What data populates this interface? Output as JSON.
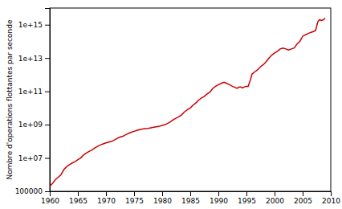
{
  "chart_data": {
    "type": "line",
    "ylabel": "Nombre d'operations flottantes par seconde",
    "log": "y",
    "grid": false,
    "color": "#cc0000",
    "xlim": [
      1960,
      2010
    ],
    "ylim": [
      100000,
      1e+16
    ],
    "xticks": [
      1960,
      1965,
      1970,
      1975,
      1980,
      1985,
      1990,
      1995,
      2000,
      2005,
      2010
    ],
    "yticks": [
      100000,
      {
        "value": 10000000.0,
        "label": "1e+07"
      },
      {
        "value": 1000000000.0,
        "label": "1e+09"
      },
      {
        "value": 100000000000.0,
        "label": "1e+11"
      },
      {
        "value": 10000000000000.0,
        "label": "1e+13"
      },
      {
        "value": 1000000000000000.0,
        "label": "1e+15"
      }
    ],
    "x": [
      1960,
      1960.5,
      1961,
      1961.5,
      1962,
      1962.5,
      1963,
      1963.5,
      1964,
      1964.5,
      1965,
      1965.5,
      1966,
      1966.5,
      1967,
      1967.5,
      1968,
      1968.5,
      1969,
      1969.5,
      1970,
      1970.5,
      1971,
      1971.5,
      1972,
      1972.5,
      1973,
      1973.5,
      1974,
      1974.5,
      1975,
      1975.5,
      1976,
      1976.5,
      1977,
      1977.5,
      1978,
      1978.5,
      1979,
      1979.5,
      1980,
      1980.5,
      1981,
      1981.5,
      1982,
      1982.5,
      1983,
      1983.5,
      1984,
      1984.5,
      1985,
      1985.5,
      1986,
      1986.5,
      1987,
      1987.5,
      1988,
      1988.5,
      1989,
      1989.5,
      1990,
      1990.5,
      1991,
      1991.5,
      1992,
      1992.5,
      1993,
      1993.3,
      1993.7,
      1994,
      1994.3,
      1994.7,
      1995,
      1995.3,
      1995.7,
      1996,
      1996.5,
      1997,
      1997.5,
      1998,
      1998.5,
      1999,
      1999.5,
      2000,
      2000.5,
      2001,
      2001.5,
      2002,
      2002.5,
      2003,
      2003.5,
      2004,
      2004.5,
      2005,
      2005.5,
      2006,
      2006.5,
      2007,
      2007.3,
      2007.7,
      2008,
      2008.3,
      2008.7,
      2009
    ],
    "values": [
      200000.0,
      300000.0,
      500000.0,
      700000.0,
      1000000.0,
      2000000.0,
      3000000.0,
      4000000.0,
      5000000.0,
      6000000.0,
      8000000.0,
      10000000.0,
      15000000.0,
      20000000.0,
      25000000.0,
      30000000.0,
      40000000.0,
      50000000.0,
      60000000.0,
      70000000.0,
      80000000.0,
      90000000.0,
      100000000.0,
      120000000.0,
      150000000.0,
      180000000.0,
      200000000.0,
      250000000.0,
      300000000.0,
      350000000.0,
      400000000.0,
      450000000.0,
      500000000.0,
      550000000.0,
      580000000.0,
      600000000.0,
      650000000.0,
      700000000.0,
      750000000.0,
      800000000.0,
      900000000.0,
      1000000000.0,
      1200000000.0,
      1500000000.0,
      2000000000.0,
      2500000000.0,
      3000000000.0,
      4000000000.0,
      6000000000.0,
      8000000000.0,
      10000000000.0,
      15000000000.0,
      20000000000.0,
      30000000000.0,
      40000000000.0,
      50000000000.0,
      70000000000.0,
      90000000000.0,
      150000000000.0,
      200000000000.0,
      250000000000.0,
      300000000000.0,
      350000000000.0,
      300000000000.0,
      250000000000.0,
      200000000000.0,
      170000000000.0,
      150000000000.0,
      180000000000.0,
      180000000000.0,
      160000000000.0,
      190000000000.0,
      200000000000.0,
      200000000000.0,
      500000000000.0,
      1100000000000.0,
      1500000000000.0,
      2000000000000.0,
      3000000000000.0,
      4000000000000.0,
      6000000000000.0,
      10000000000000.0,
      15000000000000.0,
      20000000000000.0,
      25000000000000.0,
      35000000000000.0,
      40000000000000.0,
      35000000000000.0,
      30000000000000.0,
      35000000000000.0,
      40000000000000.0,
      70000000000000.0,
      100000000000000.0,
      200000000000000.0,
      250000000000000.0,
      300000000000000.0,
      350000000000000.0,
      400000000000000.0,
      450000000000000.0,
      1500000000000000.0,
      2000000000000000.0,
      1800000000000000.0,
      2000000000000000.0,
      2500000000000000.0
    ]
  }
}
